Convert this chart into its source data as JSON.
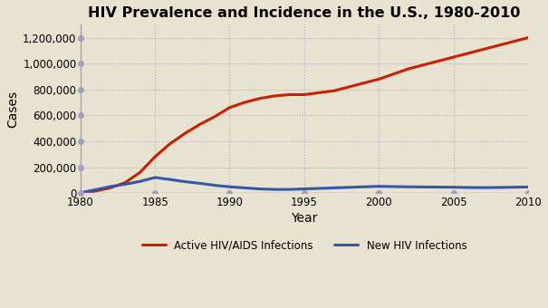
{
  "title": "HIV Prevalence and Incidence in the U.S., 1980-2010",
  "xlabel": "Year",
  "ylabel": "Cases",
  "background_color": "#e8e2d0",
  "plot_bg_color": "#e8e2d0",
  "grid_color": "#b0afc8",
  "years": [
    1980,
    1981,
    1982,
    1983,
    1984,
    1985,
    1986,
    1987,
    1988,
    1989,
    1990,
    1991,
    1992,
    1993,
    1994,
    1995,
    1996,
    1997,
    1998,
    1999,
    2000,
    2001,
    2002,
    2003,
    2004,
    2005,
    2006,
    2007,
    2008,
    2009,
    2010
  ],
  "active_hiv": [
    2000,
    15000,
    40000,
    80000,
    160000,
    280000,
    380000,
    460000,
    530000,
    590000,
    660000,
    700000,
    730000,
    750000,
    760000,
    760000,
    775000,
    790000,
    820000,
    850000,
    880000,
    920000,
    960000,
    990000,
    1020000,
    1050000,
    1080000,
    1110000,
    1140000,
    1170000,
    1200000
  ],
  "new_hiv": [
    2000,
    25000,
    50000,
    68000,
    90000,
    120000,
    105000,
    88000,
    75000,
    60000,
    48000,
    40000,
    32000,
    28000,
    28000,
    32000,
    36000,
    40000,
    44000,
    48000,
    52000,
    50000,
    48000,
    47000,
    46000,
    45000,
    43000,
    42000,
    43000,
    45000,
    47000
  ],
  "active_color": "#c82000",
  "new_color": "#3355aa",
  "line_width": 2.2,
  "ylim": [
    0,
    1300000
  ],
  "yticks": [
    0,
    200000,
    400000,
    600000,
    800000,
    1000000,
    1200000
  ],
  "xticks": [
    1980,
    1985,
    1990,
    1995,
    2000,
    2005,
    2010
  ],
  "legend_active": "Active HIV/AIDS Infections",
  "legend_new": "New HIV Infections",
  "title_fontsize": 11.5,
  "axis_label_fontsize": 10,
  "tick_fontsize": 8.5,
  "legend_fontsize": 8.5,
  "dot_color": "#a0a0be",
  "spine_color": "#a0a0be"
}
